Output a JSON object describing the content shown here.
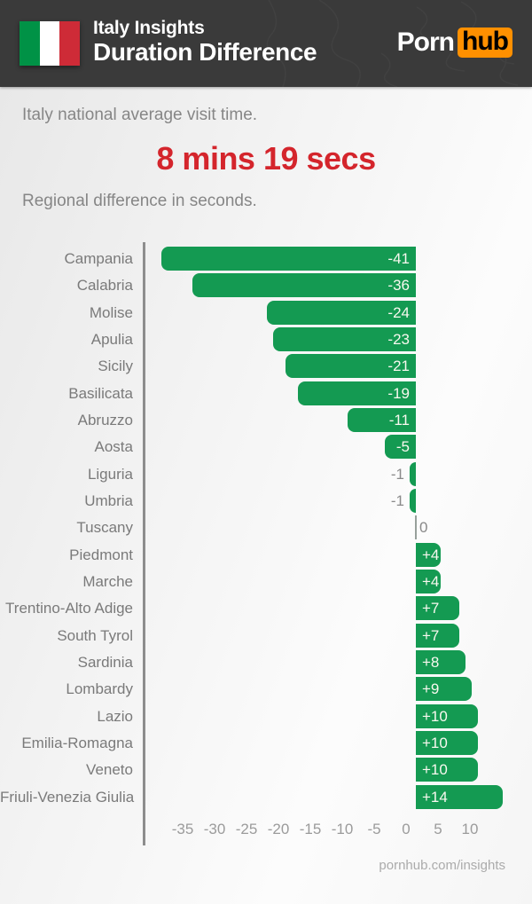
{
  "header": {
    "title_line1": "Italy Insights",
    "title_line2": "Duration Difference",
    "flag_colors": {
      "green": "#009246",
      "white": "#ffffff",
      "red": "#ce2b37"
    },
    "logo": {
      "part1": "Porn",
      "part2": "hub",
      "orange": "#ff9000"
    }
  },
  "intro": {
    "average_label": "Italy national average visit time.",
    "average_value": "8 mins 19 secs",
    "chart_label": "Regional difference in seconds."
  },
  "chart_data": {
    "type": "bar",
    "orientation": "horizontal",
    "title": "Regional difference in seconds.",
    "unit": "seconds",
    "categories": [
      "Campania",
      "Calabria",
      "Molise",
      "Apulia",
      "Sicily",
      "Basilicata",
      "Abruzzo",
      "Aosta",
      "Liguria",
      "Umbria",
      "Tuscany",
      "Piedmont",
      "Marche",
      "Trentino-Alto Adige",
      "South Tyrol",
      "Sardinia",
      "Lombardy",
      "Lazio",
      "Emilia-Romagna",
      "Veneto",
      "Friuli-Venezia Giulia"
    ],
    "values": [
      -41,
      -36,
      -24,
      -23,
      -21,
      -19,
      -11,
      -5,
      -1,
      -1,
      0,
      4,
      4,
      7,
      7,
      8,
      9,
      10,
      10,
      10,
      14
    ],
    "value_labels": [
      "-41",
      "-36",
      "-24",
      "-23",
      "-21",
      "-19",
      "-11",
      "-5",
      "-1",
      "-1",
      "0",
      "+4",
      "+4",
      "+7",
      "+7",
      "+8",
      "+9",
      "+10",
      "+10",
      "+10",
      "+14"
    ],
    "x_ticks": [
      -35,
      -30,
      -25,
      -20,
      -15,
      -10,
      -5,
      0,
      5,
      10
    ],
    "xlim": [
      -43,
      16
    ],
    "grid": false,
    "legend": "none",
    "bar_color": "#149a52",
    "inside_label_color": "#f8f8ef",
    "outside_label_color": "#8a8a8a"
  },
  "footer": {
    "url": "pornhub.com/insights"
  },
  "colors": {
    "header_bg": "#3a3a3a",
    "accent_red": "#d4252c",
    "bar_green": "#149a52",
    "text_gray": "#868686",
    "axis_gray": "#8d8d8d"
  }
}
